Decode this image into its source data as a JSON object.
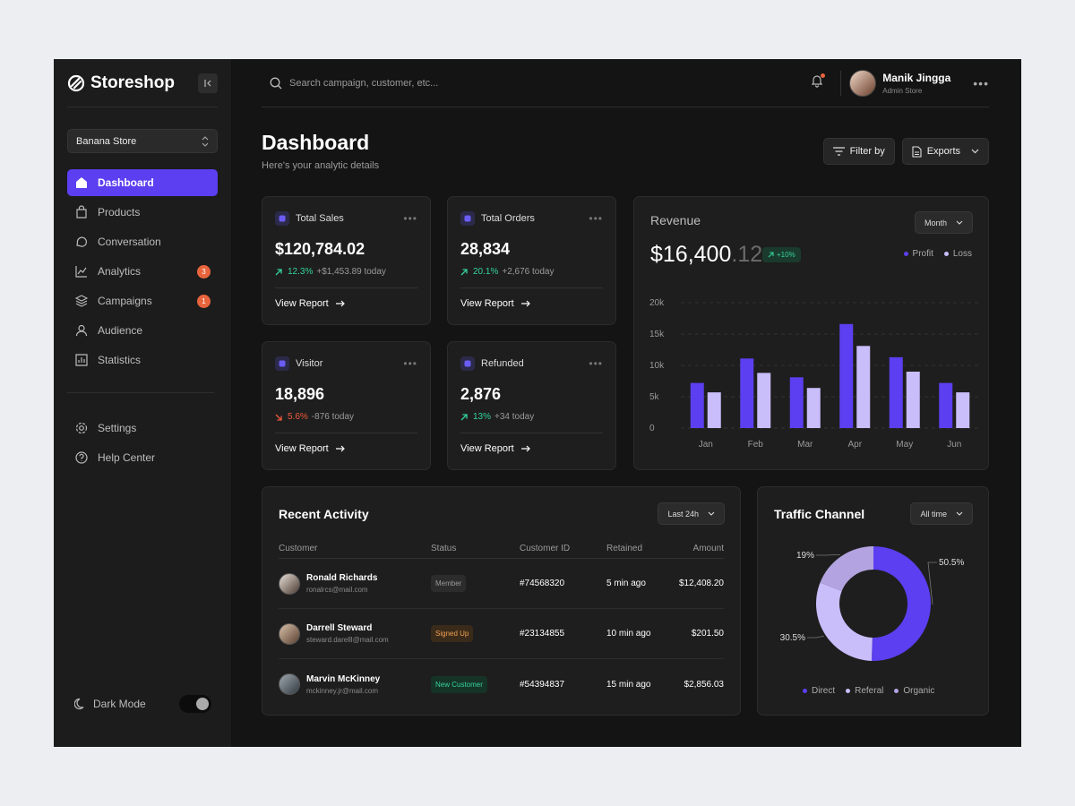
{
  "brand": {
    "name": "Storeshop"
  },
  "store": {
    "selected": "Banana Store"
  },
  "nav": [
    {
      "label": "Dashboard",
      "icon": "home-icon",
      "active": true
    },
    {
      "label": "Products",
      "icon": "bag-icon"
    },
    {
      "label": "Conversation",
      "icon": "chat-icon"
    },
    {
      "label": "Analytics",
      "icon": "chart-icon",
      "badge": "3"
    },
    {
      "label": "Campaigns",
      "icon": "layers-icon",
      "badge": "1"
    },
    {
      "label": "Audience",
      "icon": "users-icon"
    },
    {
      "label": "Statistics",
      "icon": "stats-icon"
    }
  ],
  "nav_bottom": [
    {
      "label": "Settings",
      "icon": "gear-icon"
    },
    {
      "label": "Help Center",
      "icon": "help-icon"
    }
  ],
  "dark_mode": {
    "label": "Dark Mode",
    "enabled": true
  },
  "search": {
    "placeholder": "Search campaign, customer, etc..."
  },
  "user": {
    "name": "Manik Jingga",
    "role": "Admin Store"
  },
  "page": {
    "title": "Dashboard",
    "subtitle": "Here's your analytic details"
  },
  "actions": {
    "filter": "Filter by",
    "exports": "Exports"
  },
  "stats": [
    {
      "label": "Total Sales",
      "value": "$120,784.02",
      "change": "12.3%",
      "direction": "up",
      "delta": "+$1,453.89 today",
      "link": "View Report"
    },
    {
      "label": "Total Orders",
      "value": "28,834",
      "change": "20.1%",
      "direction": "up",
      "delta": "+2,676 today",
      "link": "View Report"
    },
    {
      "label": "Visitor",
      "value": "18,896",
      "change": "5.6%",
      "direction": "down",
      "delta": "-876 today",
      "link": "View Report"
    },
    {
      "label": "Refunded",
      "value": "2,876",
      "change": "13%",
      "direction": "up",
      "delta": "+34 today",
      "link": "View Report"
    }
  ],
  "revenue": {
    "title": "Revenue",
    "period": "Month",
    "value_main": "$16,400",
    "value_decimal": ".12",
    "change": "+10%",
    "legend_profit": "Profit",
    "legend_loss": "Loss"
  },
  "chart_data": [
    {
      "type": "bar",
      "title": "Revenue",
      "categories": [
        "Jan",
        "Feb",
        "Mar",
        "Apr",
        "May",
        "Jun"
      ],
      "series": [
        {
          "name": "Profit",
          "values": [
            7200,
            11100,
            8100,
            16600,
            11300,
            7200
          ]
        },
        {
          "name": "Loss",
          "values": [
            5700,
            8800,
            6400,
            13100,
            9000,
            5700
          ]
        }
      ],
      "yticks": [
        "0",
        "5k",
        "10k",
        "15k",
        "20k"
      ],
      "ylim": [
        0,
        20000
      ],
      "colors": {
        "Profit": "#5b3ff0",
        "Loss": "#c9bdfa"
      },
      "legend": "top-right",
      "grid": true
    },
    {
      "type": "pie",
      "title": "Traffic Channel",
      "labels": [
        "Direct",
        "Referal",
        "Organic"
      ],
      "values": [
        50.5,
        30.5,
        19
      ],
      "value_labels": [
        "50.5%",
        "30.5%",
        "19%"
      ],
      "colors": [
        "#5b3ff0",
        "#c9bdfa",
        "#b3a3e0"
      ],
      "legend": "bottom"
    }
  ],
  "activity": {
    "title": "Recent Activity",
    "period": "Last 24h",
    "columns": [
      "Customer",
      "Status",
      "Customer ID",
      "Retained",
      "Amount"
    ],
    "rows": [
      {
        "name": "Ronald Richards",
        "email": "ronalrcs@mail.com",
        "status": "Member",
        "status_type": "member",
        "id": "#74568320",
        "retained": "5 min ago",
        "amount": "$12,408.20"
      },
      {
        "name": "Darrell Steward",
        "email": "steward.darelll@mail.com",
        "status": "Signed Up",
        "status_type": "signed",
        "id": "#23134855",
        "retained": "10 min ago",
        "amount": "$201.50"
      },
      {
        "name": "Marvin McKinney",
        "email": "mckinney.jr@mail.com",
        "status": "New Customer",
        "status_type": "new",
        "id": "#54394837",
        "retained": "15 min ago",
        "amount": "$2,856.03"
      }
    ]
  },
  "traffic": {
    "title": "Traffic Channel",
    "period": "All time"
  }
}
